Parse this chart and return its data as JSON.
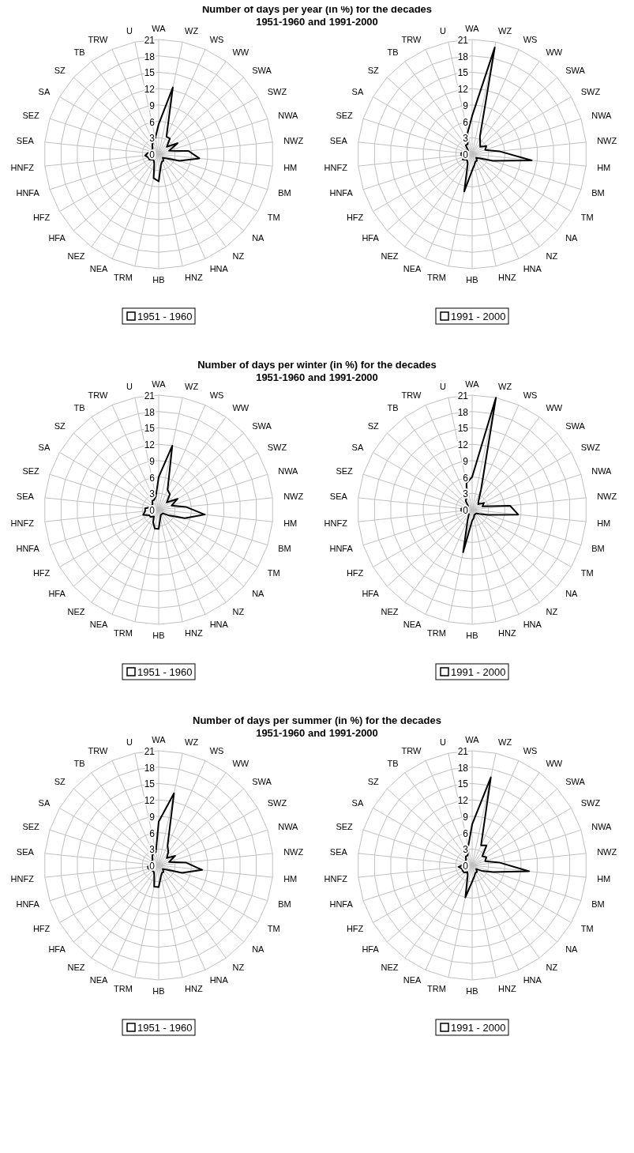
{
  "chart_data": [
    {
      "type": "radar",
      "title": "Number of days per year (in %) for the decades\n1951-1960 and 1991-2000",
      "categories": [
        "WA",
        "WZ",
        "WS",
        "WW",
        "SWA",
        "SWZ",
        "NWA",
        "NWZ",
        "HM",
        "BM",
        "TM",
        "NA",
        "NZ",
        "HNA",
        "HNZ",
        "HB",
        "TRM",
        "NEA",
        "NEZ",
        "HFA",
        "HFZ",
        "HNFA",
        "HNFZ",
        "SEA",
        "SEZ",
        "SA",
        "SZ",
        "TB",
        "TRW",
        "U"
      ],
      "ylim": [
        0,
        21
      ],
      "yticks": [
        0,
        3,
        6,
        9,
        12,
        15,
        18,
        21
      ],
      "grid": true,
      "legend": "bottom",
      "marker": "none",
      "series": [
        {
          "name": "1951 - 1960",
          "color": "#000000",
          "values": [
            5.5,
            12.5,
            3.5,
            3.5,
            2,
            4,
            2,
            5.5,
            7.5,
            4,
            1.5,
            1,
            1.5,
            1.5,
            2,
            5,
            4.5,
            2,
            1.5,
            1.5,
            2,
            2,
            2.5,
            2,
            1.5,
            1.5,
            1.5,
            2,
            2.5,
            3
          ]
        }
      ]
    },
    {
      "type": "radar",
      "categories": [
        "WA",
        "WZ",
        "WS",
        "WW",
        "SWA",
        "SWZ",
        "NWA",
        "NWZ",
        "HM",
        "BM",
        "TM",
        "NA",
        "NZ",
        "HNA",
        "HNZ",
        "HB",
        "TRM",
        "NEA",
        "NEZ",
        "HFA",
        "HFZ",
        "HNFA",
        "HNFZ",
        "SEA",
        "SEZ",
        "SA",
        "SZ",
        "TB",
        "TRW",
        "U"
      ],
      "ylim": [
        0,
        21
      ],
      "yticks": [
        0,
        3,
        6,
        9,
        12,
        15,
        18,
        21
      ],
      "grid": true,
      "legend": "bottom",
      "marker": "none",
      "series": [
        {
          "name": "1991 - 2000",
          "color": "#000000",
          "values": [
            7,
            20,
            3.5,
            2.5,
            2,
            3,
            2.5,
            5,
            11,
            4,
            1.5,
            1,
            1.5,
            1.5,
            2,
            3,
            7,
            2,
            1.5,
            1.5,
            2,
            1.5,
            2,
            2,
            1.5,
            1.5,
            1,
            2,
            2,
            4
          ]
        }
      ]
    },
    {
      "type": "radar",
      "title": "Number of days per winter (in %) for the decades\n1951-1960 and 1991-2000",
      "categories": [
        "WA",
        "WZ",
        "WS",
        "WW",
        "SWA",
        "SWZ",
        "NWA",
        "NWZ",
        "HM",
        "BM",
        "TM",
        "NA",
        "NZ",
        "HNA",
        "HNZ",
        "HB",
        "TRM",
        "NEA",
        "NEZ",
        "HFA",
        "HFZ",
        "HNFA",
        "HNFZ",
        "SEA",
        "SEZ",
        "SA",
        "SZ",
        "TB",
        "TRW",
        "U"
      ],
      "ylim": [
        0,
        21
      ],
      "yticks": [
        0,
        3,
        6,
        9,
        12,
        15,
        18,
        21
      ],
      "grid": true,
      "legend": "bottom",
      "marker": "none",
      "series": [
        {
          "name": "1951 - 1960",
          "color": "#000000",
          "values": [
            6,
            12,
            4,
            3.5,
            2,
            4,
            2.5,
            5,
            8.5,
            5,
            2,
            1,
            1,
            1,
            1.5,
            3.5,
            3.5,
            2.5,
            1.5,
            2,
            2,
            3,
            2.5,
            2.5,
            1.5,
            1.5,
            1.5,
            2,
            2,
            2.5
          ]
        }
      ]
    },
    {
      "type": "radar",
      "categories": [
        "WA",
        "WZ",
        "WS",
        "WW",
        "SWA",
        "SWZ",
        "NWA",
        "NWZ",
        "HM",
        "BM",
        "TM",
        "NA",
        "NZ",
        "HNA",
        "HNZ",
        "HB",
        "TRM",
        "NEA",
        "NEZ",
        "HFA",
        "HFZ",
        "HNFA",
        "HNFZ",
        "SEA",
        "SEZ",
        "SA",
        "SZ",
        "TB",
        "TRW",
        "U"
      ],
      "ylim": [
        0,
        21
      ],
      "yticks": [
        0,
        3,
        6,
        9,
        12,
        15,
        18,
        21
      ],
      "grid": true,
      "legend": "bottom",
      "marker": "none",
      "series": [
        {
          "name": "1991 - 2000",
          "color": "#000000",
          "values": [
            6,
            21,
            4,
            2,
            1.5,
            2.5,
            2,
            7,
            8.5,
            3,
            1.5,
            1,
            1,
            1,
            1.5,
            2,
            8,
            2,
            1,
            1,
            1.5,
            1.5,
            2,
            2,
            1.5,
            1,
            1,
            2,
            2.5,
            5
          ]
        }
      ]
    },
    {
      "type": "radar",
      "title": "Number of days per summer (in %) for the decades\n1951-1960 and 1991-2000",
      "categories": [
        "WA",
        "WZ",
        "WS",
        "WW",
        "SWA",
        "SWZ",
        "NWA",
        "NWZ",
        "HM",
        "BM",
        "TM",
        "NA",
        "NZ",
        "HNA",
        "HNZ",
        "HB",
        "TRM",
        "NEA",
        "NEZ",
        "HFA",
        "HFZ",
        "HNFA",
        "HNFZ",
        "SEA",
        "SEZ",
        "SA",
        "SZ",
        "TB",
        "TRW",
        "U"
      ],
      "ylim": [
        0,
        21
      ],
      "yticks": [
        0,
        3,
        6,
        9,
        12,
        15,
        18,
        21
      ],
      "grid": true,
      "legend": "bottom",
      "marker": "none",
      "series": [
        {
          "name": "1951 - 1960",
          "color": "#000000",
          "values": [
            8,
            13.5,
            4,
            3,
            2,
            3.5,
            2,
            5,
            8,
            4.5,
            1.5,
            1,
            1.5,
            1.5,
            2,
            4,
            4,
            2,
            1.5,
            1.5,
            1.5,
            2,
            2,
            1.5,
            1.5,
            1.5,
            1.5,
            2,
            2.5,
            2.5
          ]
        }
      ]
    },
    {
      "type": "radar",
      "categories": [
        "WA",
        "WZ",
        "WS",
        "WW",
        "SWA",
        "SWZ",
        "NWA",
        "NWZ",
        "HM",
        "BM",
        "TM",
        "NA",
        "NZ",
        "HNA",
        "HNZ",
        "HB",
        "TRM",
        "NEA",
        "NEZ",
        "HFA",
        "HFZ",
        "HNFA",
        "HNFZ",
        "SEA",
        "SEZ",
        "SA",
        "SZ",
        "TB",
        "TRW",
        "U"
      ],
      "ylim": [
        0,
        21
      ],
      "yticks": [
        0,
        3,
        6,
        9,
        12,
        15,
        18,
        21
      ],
      "grid": true,
      "legend": "bottom",
      "marker": "none",
      "series": [
        {
          "name": "1991 - 2000",
          "color": "#000000",
          "values": [
            7.5,
            16.5,
            4,
            4.5,
            2.5,
            3,
            2.5,
            5,
            10.5,
            4,
            2,
            1,
            1.5,
            1.5,
            2,
            3,
            6,
            2,
            1.5,
            2,
            2,
            2,
            2.5,
            1.5,
            1.5,
            1.5,
            1.5,
            2,
            2,
            3.5
          ]
        }
      ]
    }
  ]
}
